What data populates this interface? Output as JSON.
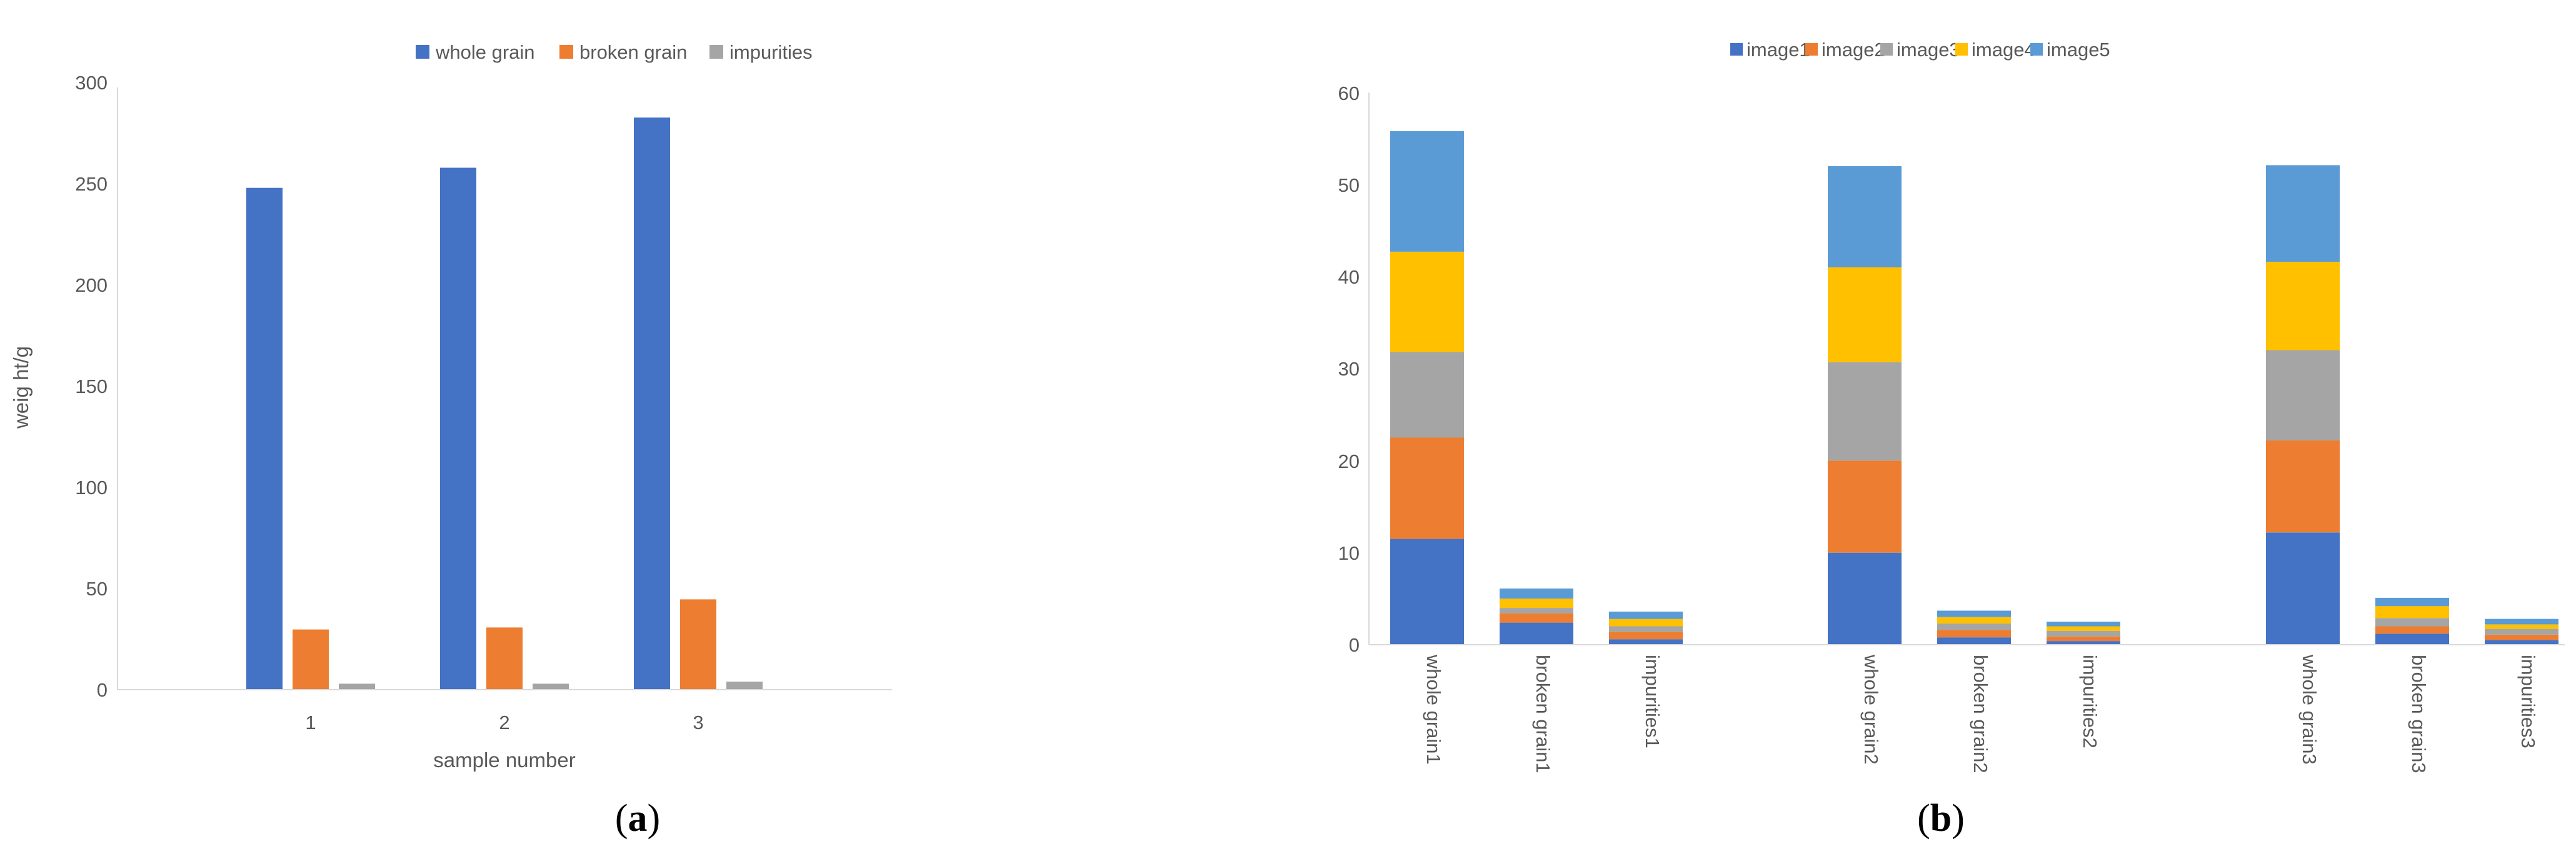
{
  "chart_data": [
    {
      "type": "bar",
      "panel_label_open": "(",
      "panel_label_letter": "a",
      "panel_label_close": ")",
      "categories": [
        "1",
        "2",
        "3"
      ],
      "series": [
        {
          "name": "whole grain",
          "color": "#4472C4",
          "values": [
            250,
            260,
            285
          ]
        },
        {
          "name": "broken grain",
          "color": "#ED7D31",
          "values": [
            30,
            31,
            45
          ]
        },
        {
          "name": "impurities",
          "color": "#A5A5A5",
          "values": [
            3,
            3,
            4
          ]
        }
      ],
      "xlabel": "sample number",
      "ylabel": "weig ht/g",
      "ylim": [
        0,
        300
      ],
      "yticks": [
        "0",
        "50",
        "100",
        "150",
        "200",
        "250",
        "300"
      ],
      "legend": "top-center",
      "grid": false
    },
    {
      "type": "bar",
      "stacked": true,
      "panel_label_open": "(",
      "panel_label_letter": "b",
      "panel_label_close": ")",
      "categories": [
        "whole grain1",
        "broken grain1",
        "impurities1",
        "whole grain2",
        "broken grain2",
        "impurities2",
        "whole grain3",
        "broken grain3",
        "impurities3"
      ],
      "series": [
        {
          "name": "image1",
          "color": "#4472C4",
          "values": [
            11.5,
            2.4,
            0.6,
            10.0,
            0.8,
            0.4,
            12.2,
            1.2,
            0.5
          ]
        },
        {
          "name": "image2",
          "color": "#ED7D31",
          "values": [
            11.0,
            1.0,
            0.8,
            10.0,
            0.8,
            0.5,
            10.0,
            0.8,
            0.6
          ]
        },
        {
          "name": "image3",
          "color": "#A5A5A5",
          "values": [
            9.3,
            0.6,
            0.6,
            10.7,
            0.7,
            0.6,
            9.8,
            0.9,
            0.6
          ]
        },
        {
          "name": "image4",
          "color": "#FFC000",
          "values": [
            10.9,
            1.0,
            0.8,
            10.3,
            0.7,
            0.5,
            9.6,
            1.3,
            0.5
          ]
        },
        {
          "name": "image5",
          "color": "#5B9BD5",
          "values": [
            13.1,
            1.1,
            0.8,
            11.0,
            0.7,
            0.5,
            10.5,
            0.9,
            0.6
          ]
        }
      ],
      "ylim": [
        0,
        60
      ],
      "yticks": [
        "0",
        "10",
        "20",
        "30",
        "40",
        "50",
        "60"
      ],
      "legend": "top-center",
      "grid": false
    }
  ]
}
